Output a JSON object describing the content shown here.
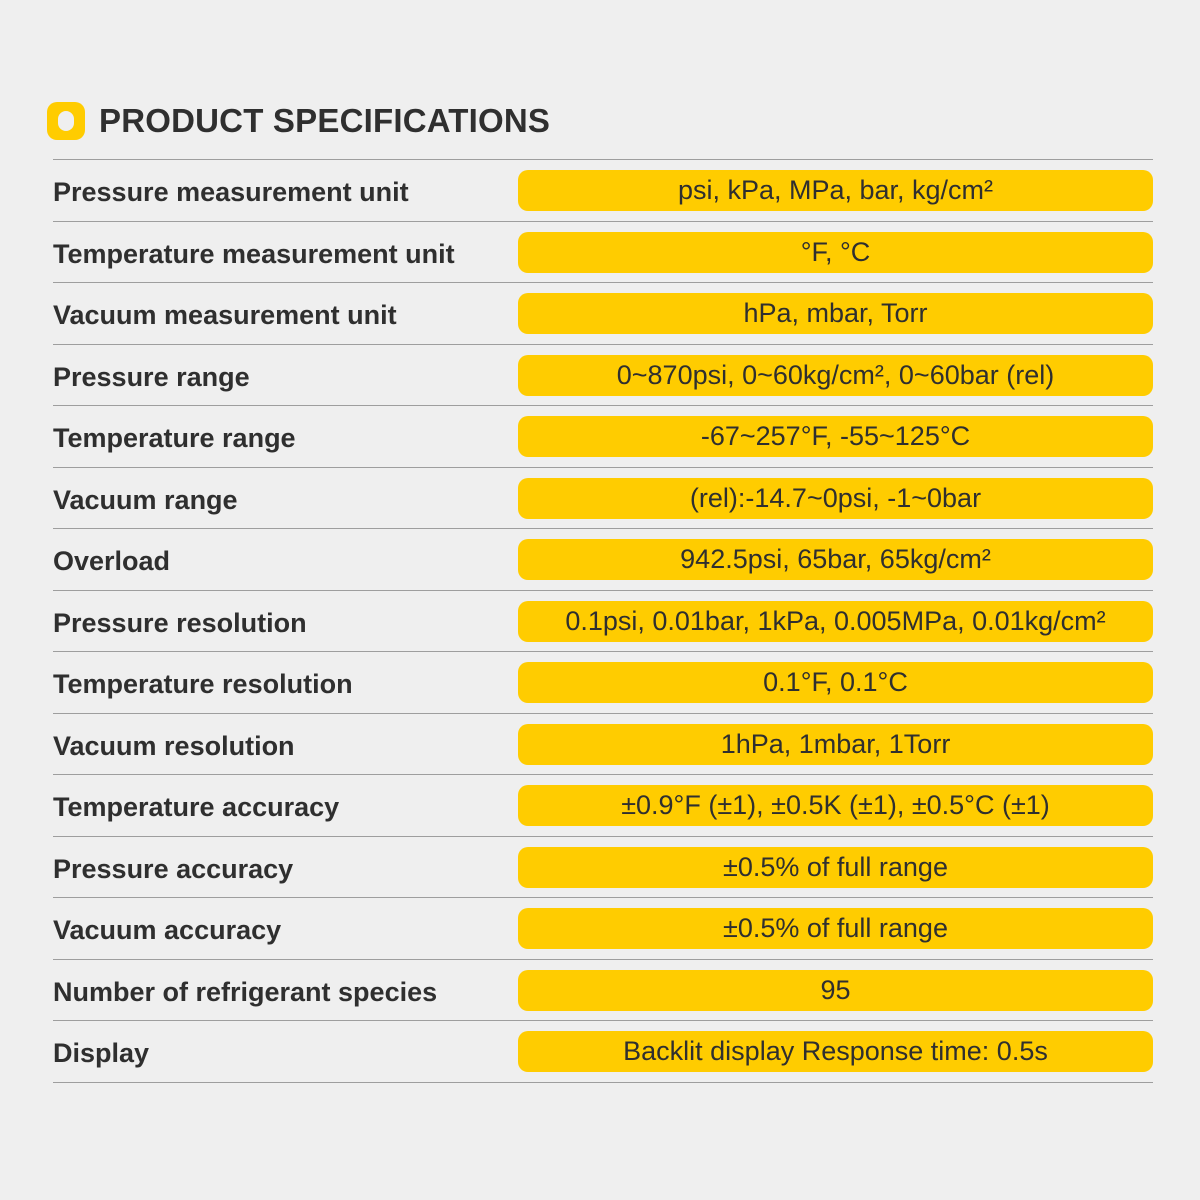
{
  "header": {
    "title": "PRODUCT SPECIFICATIONS",
    "icon": "rounded-square-o-icon",
    "accent_color": "#ffcc00"
  },
  "specs": [
    {
      "label": "Pressure measurement unit",
      "value": "psi, kPa, MPa, bar, kg/cm²"
    },
    {
      "label": "Temperature measurement unit",
      "value": "°F, °C"
    },
    {
      "label": "Vacuum measurement unit",
      "value": "hPa, mbar, Torr"
    },
    {
      "label": "Pressure range",
      "value": "0~870psi, 0~60kg/cm², 0~60bar (rel)"
    },
    {
      "label": "Temperature range",
      "value": "-67~257°F, -55~125°C"
    },
    {
      "label": "Vacuum range",
      "value": "(rel):-14.7~0psi, -1~0bar"
    },
    {
      "label": "Overload",
      "value": "942.5psi, 65bar, 65kg/cm²"
    },
    {
      "label": "Pressure resolution",
      "value": "0.1psi, 0.01bar, 1kPa, 0.005MPa, 0.01kg/cm²"
    },
    {
      "label": "Temperature resolution",
      "value": "0.1°F, 0.1°C"
    },
    {
      "label": "Vacuum resolution",
      "value": "1hPa, 1mbar, 1Torr"
    },
    {
      "label": "Temperature accuracy",
      "value": "±0.9°F (±1), ±0.5K (±1), ±0.5°C (±1)"
    },
    {
      "label": "Pressure accuracy",
      "value": "±0.5% of full range"
    },
    {
      "label": "Vacuum accuracy",
      "value": "±0.5% of full range"
    },
    {
      "label": "Number of refrigerant species",
      "value": "95"
    },
    {
      "label": "Display",
      "value": "Backlit display Response time:  0.5s"
    }
  ]
}
